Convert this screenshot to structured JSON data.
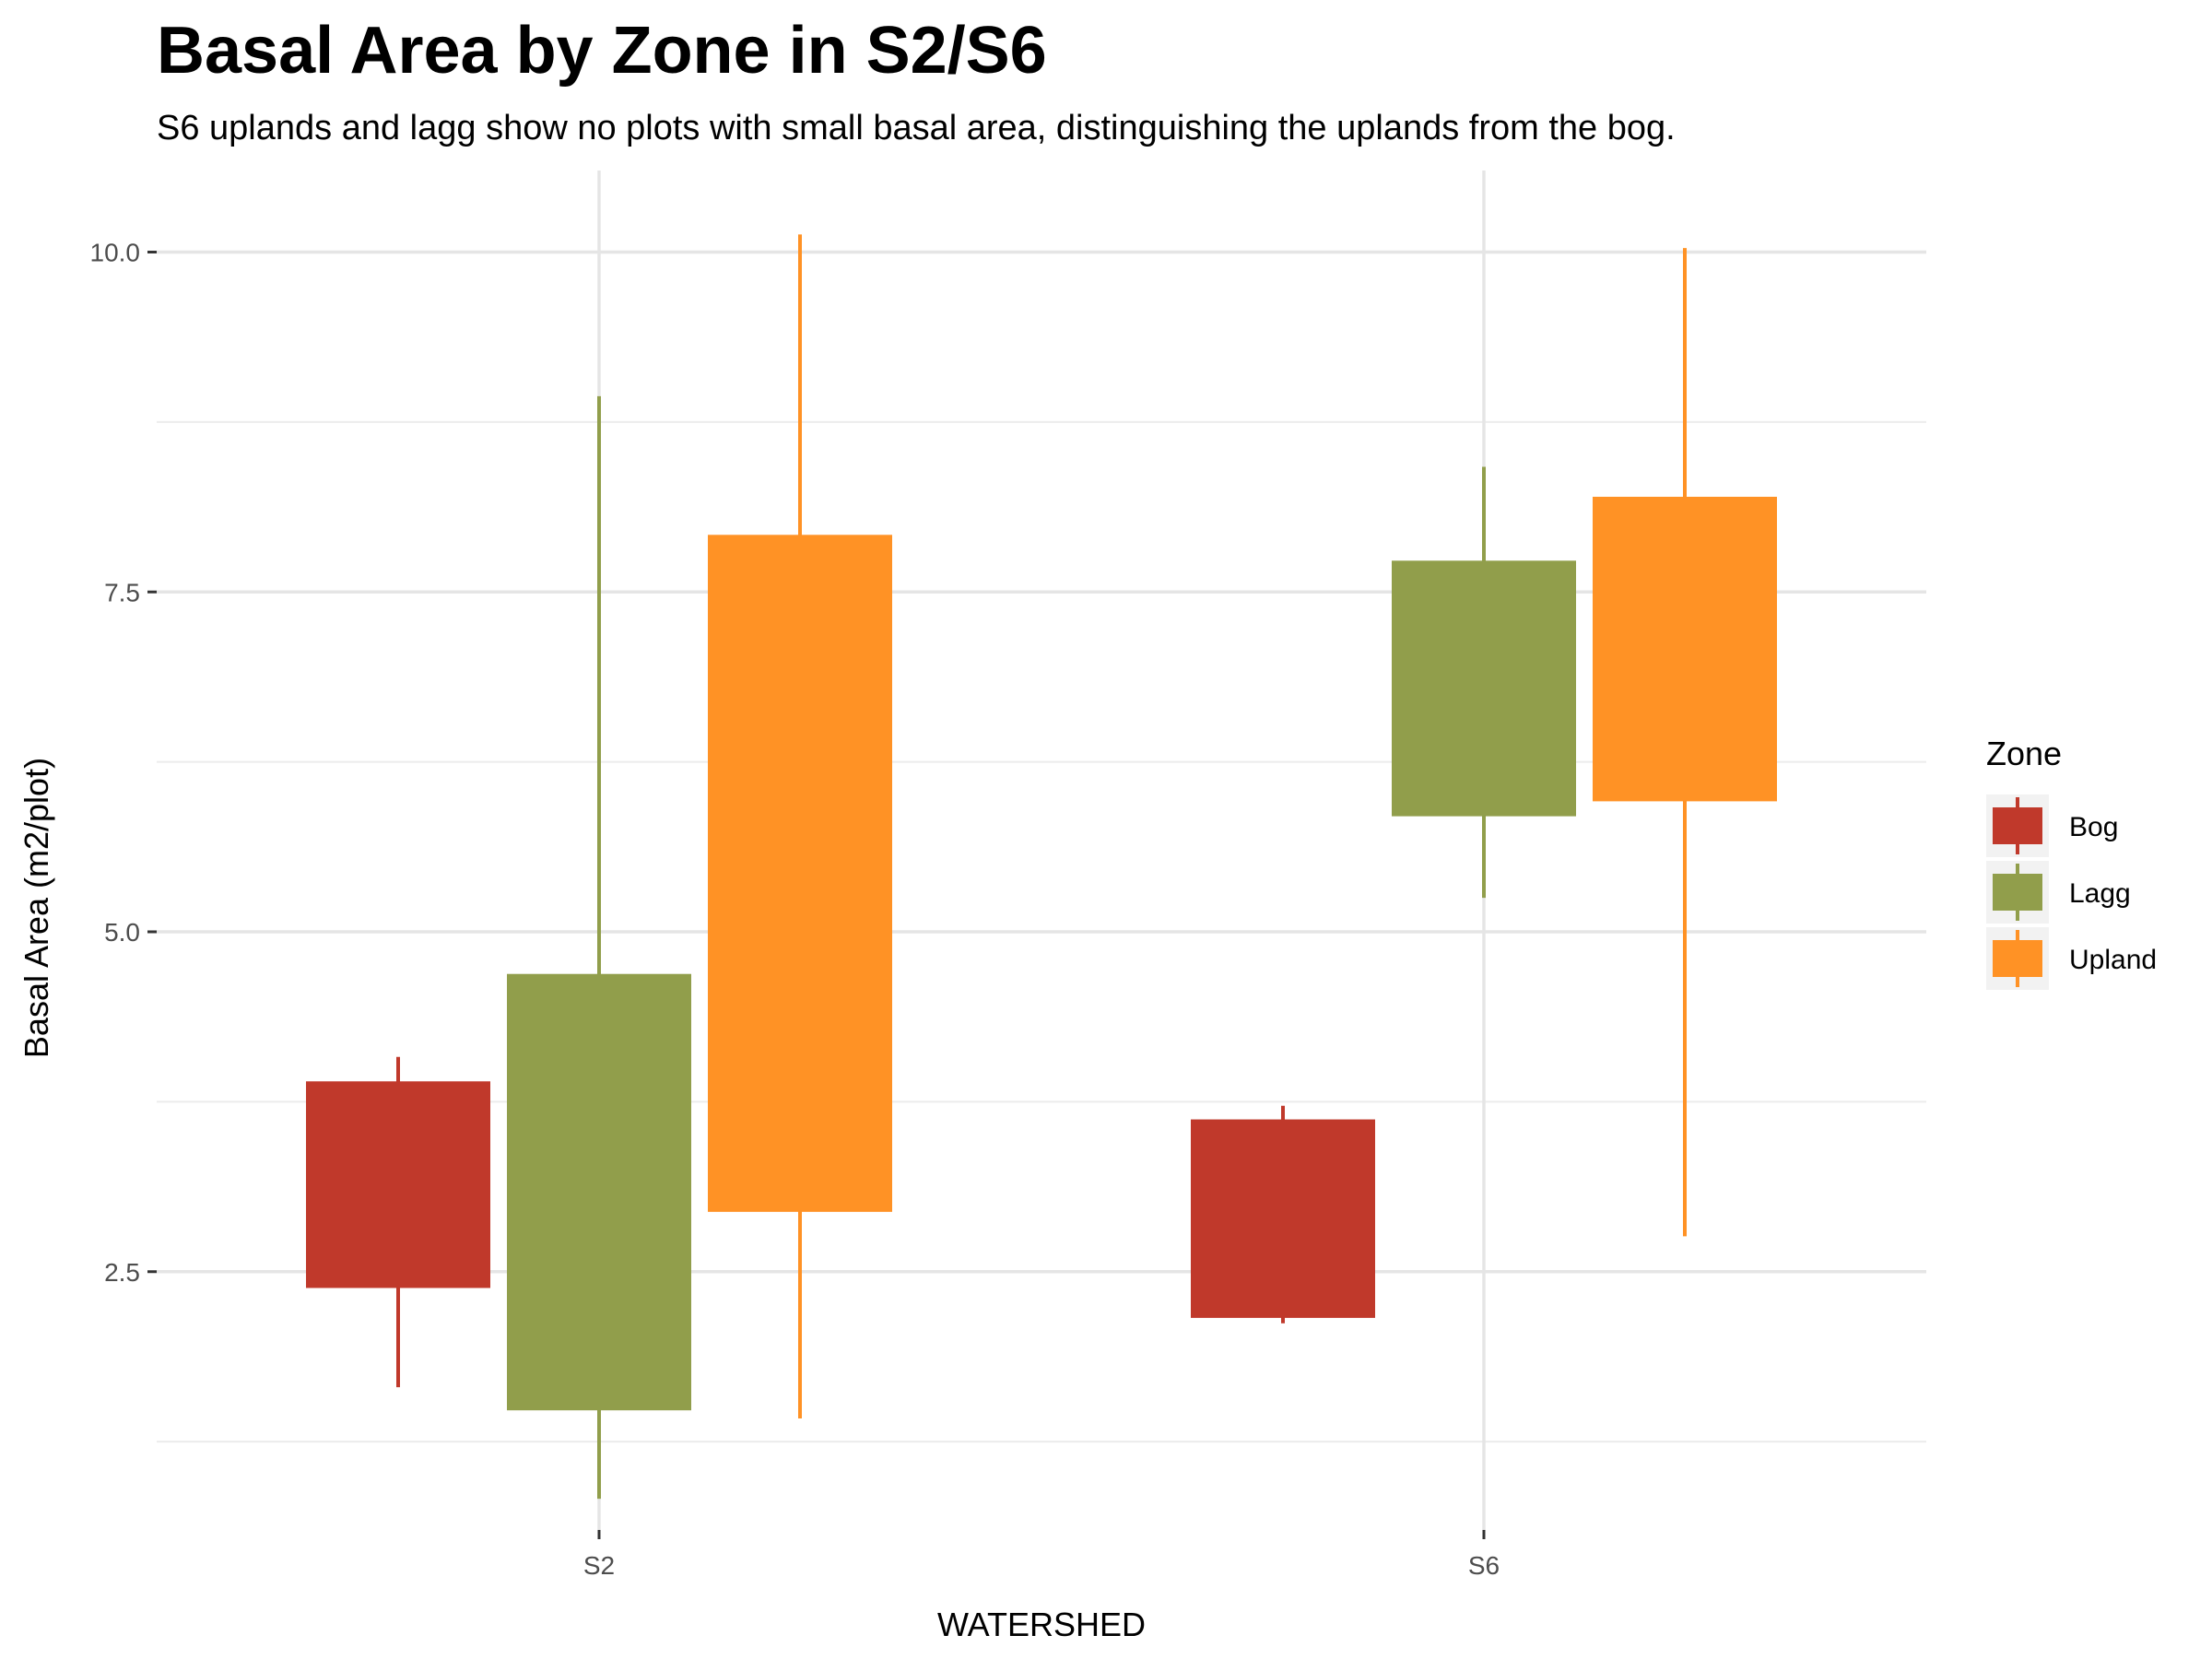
{
  "chart_data": {
    "type": "box",
    "title": "Basal Area by Zone in S2/S6",
    "subtitle": "S6 uplands and lagg show no plots with small basal area, distinguishing the uplands from the bog.",
    "xlabel": "WATERSHED",
    "ylabel": "Basal Area (m2/plot)",
    "categories": [
      "S2",
      "S6"
    ],
    "ylim": [
      0.6,
      10.6
    ],
    "yticks": [
      2.5,
      5.0,
      7.5,
      10.0
    ],
    "ytick_labels": [
      "2.5",
      "5.0",
      "7.5",
      "10.0"
    ],
    "grid": true,
    "legend": {
      "title": "Zone",
      "position": "right"
    },
    "series": [
      {
        "name": "Bog",
        "color": "#C0392B",
        "boxes": [
          {
            "category": "S2",
            "min": 1.65,
            "q1": 2.38,
            "q3": 3.9,
            "max": 4.08
          },
          {
            "category": "S6",
            "min": 2.12,
            "q1": 2.16,
            "q3": 3.62,
            "max": 3.72
          }
        ]
      },
      {
        "name": "Lagg",
        "color": "#919E4B",
        "boxes": [
          {
            "category": "S2",
            "min": 0.83,
            "q1": 1.48,
            "q3": 4.69,
            "max": 8.94
          },
          {
            "category": "S6",
            "min": 5.25,
            "q1": 5.85,
            "q3": 7.73,
            "max": 8.42
          }
        ]
      },
      {
        "name": "Upland",
        "color": "#FF9225",
        "boxes": [
          {
            "category": "S2",
            "min": 1.42,
            "q1": 2.94,
            "q3": 7.92,
            "max": 10.13
          },
          {
            "category": "S6",
            "min": 2.76,
            "q1": 5.96,
            "q3": 8.2,
            "max": 10.03
          }
        ]
      }
    ]
  }
}
